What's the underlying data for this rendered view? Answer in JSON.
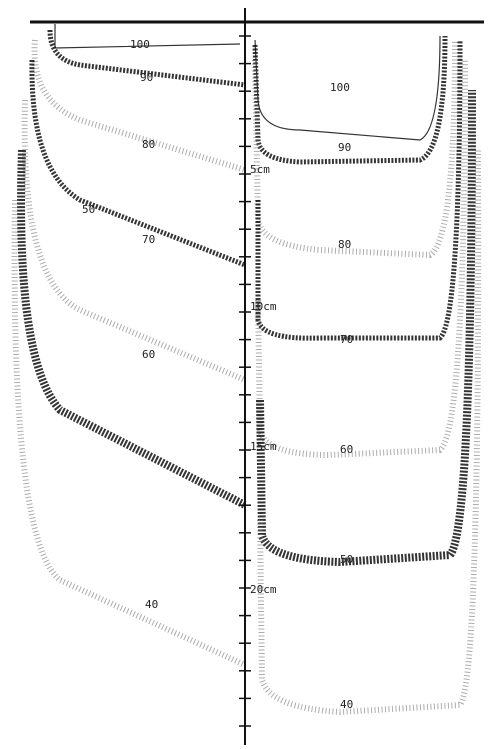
{
  "axis": {
    "tick_labels": [
      "5cm",
      "10cm",
      "15cm",
      "20cm"
    ]
  },
  "left_field": {
    "isodose_labels": [
      "100",
      "90",
      "80",
      "50",
      "70",
      "60",
      "40"
    ]
  },
  "right_field": {
    "isodose_labels": [
      "100",
      "90",
      "80",
      "70",
      "60",
      "50",
      "40"
    ]
  }
}
